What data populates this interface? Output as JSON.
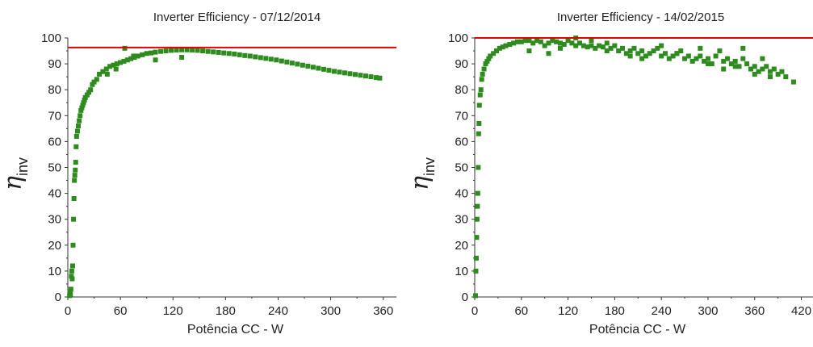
{
  "chart_data": [
    {
      "type": "scatter",
      "title": "Inverter Efficiency - 07/12/2014",
      "xlabel": "Potência CC - W",
      "ylabel_symbol": "η",
      "ylabel_subscript": "inv",
      "xlim": [
        0,
        375
      ],
      "ylim": [
        0,
        100
      ],
      "xticks": [
        0,
        60,
        120,
        180,
        240,
        300,
        360
      ],
      "yticks": [
        0,
        10,
        20,
        30,
        40,
        50,
        60,
        70,
        80,
        90,
        100
      ],
      "reference_line": 96.3,
      "series": [
        {
          "marker_color": "#2e8b1e",
          "line_color": "#e00000",
          "x": [
            2,
            2.5,
            3,
            3.5,
            4,
            4.5,
            5,
            5.5,
            6,
            6.5,
            7,
            7.5,
            8,
            8.5,
            9,
            9.5,
            10,
            11,
            12,
            13,
            14,
            15,
            16,
            17,
            18,
            19,
            20,
            22,
            24,
            26,
            28,
            30,
            33,
            36,
            40,
            44,
            48,
            52,
            56,
            60,
            64,
            68,
            72,
            76,
            80,
            85,
            90,
            95,
            100,
            106,
            112,
            118,
            124,
            130,
            136,
            142,
            148,
            154,
            160,
            166,
            172,
            178,
            184,
            190,
            196,
            202,
            208,
            214,
            220,
            226,
            232,
            238,
            244,
            250,
            256,
            262,
            268,
            274,
            280,
            286,
            292,
            298,
            304,
            310,
            316,
            322,
            328,
            334,
            340,
            346,
            352,
            356,
            65,
            100,
            75,
            130,
            45,
            55
          ],
          "y": [
            0.5,
            2,
            1,
            3,
            8,
            10,
            7,
            12,
            20,
            30,
            38,
            45,
            47,
            49,
            52,
            58,
            62,
            64,
            66,
            68,
            70,
            72,
            73,
            74,
            75,
            76,
            77,
            78,
            79,
            80,
            82,
            83,
            84,
            86,
            87,
            88,
            89,
            89.5,
            90,
            90.5,
            91,
            91.5,
            92,
            92.5,
            93,
            93.5,
            94,
            94.2,
            94.5,
            94.8,
            95,
            95.2,
            95.3,
            95.4,
            95.4,
            95.3,
            95.2,
            95,
            94.8,
            94.6,
            94.4,
            94.2,
            94,
            93.8,
            93.5,
            93.2,
            93,
            92.7,
            92.4,
            92.1,
            91.8,
            91.5,
            91.1,
            90.7,
            90.3,
            89.9,
            89.5,
            89.1,
            88.7,
            88.3,
            87.9,
            87.5,
            87.1,
            86.8,
            86.5,
            86.2,
            85.9,
            85.6,
            85.3,
            85,
            84.7,
            84.5,
            96,
            91.5,
            93,
            92.5,
            86,
            88
          ]
        }
      ]
    },
    {
      "type": "scatter",
      "title": "Inverter Efficiency - 14/02/2015",
      "xlabel": "Potência CC - W",
      "ylabel_symbol": "η",
      "ylabel_subscript": "inv",
      "xlim": [
        0,
        435
      ],
      "ylim": [
        0,
        100
      ],
      "xticks": [
        0,
        60,
        120,
        180,
        240,
        300,
        360,
        420
      ],
      "yticks": [
        0,
        10,
        20,
        30,
        40,
        50,
        60,
        70,
        80,
        90,
        100
      ],
      "reference_line": 100,
      "series": [
        {
          "marker_color": "#2e8b1e",
          "line_color": "#e00000",
          "x": [
            1,
            1.5,
            2,
            2.5,
            3,
            3.5,
            4,
            4.5,
            5,
            5.5,
            6,
            7,
            8,
            9,
            10,
            12,
            14,
            16,
            18,
            20,
            24,
            28,
            32,
            36,
            40,
            45,
            50,
            55,
            60,
            65,
            70,
            75,
            80,
            85,
            90,
            95,
            100,
            105,
            110,
            115,
            120,
            125,
            130,
            135,
            140,
            145,
            150,
            155,
            160,
            165,
            170,
            175,
            180,
            185,
            190,
            195,
            200,
            205,
            210,
            215,
            220,
            225,
            230,
            235,
            240,
            245,
            250,
            255,
            260,
            265,
            270,
            275,
            280,
            285,
            290,
            295,
            300,
            305,
            310,
            315,
            320,
            325,
            330,
            335,
            340,
            345,
            350,
            355,
            360,
            365,
            370,
            375,
            380,
            385,
            390,
            395,
            400,
            410,
            70,
            95,
            110,
            150,
            200,
            240,
            290,
            320,
            345,
            370,
            380,
            130,
            170,
            215,
            260,
            300,
            335,
            360
          ],
          "y": [
            0.5,
            10,
            15,
            23,
            30,
            35,
            40,
            50,
            63,
            67,
            74,
            78,
            80,
            84,
            86,
            88,
            90,
            91,
            92,
            93,
            94,
            95,
            96,
            96.5,
            97,
            97.5,
            98,
            98.5,
            98.5,
            99,
            99,
            98,
            99,
            98.5,
            97,
            98,
            99,
            98.5,
            98,
            97.5,
            99,
            98,
            97,
            98,
            97,
            96.5,
            97,
            96,
            97,
            96.5,
            95,
            96,
            97,
            95,
            96,
            94,
            95,
            96,
            94,
            95,
            93,
            94,
            95,
            96,
            93,
            94,
            92,
            93,
            94,
            95,
            92,
            93,
            91,
            92,
            93,
            91,
            92,
            90,
            93,
            95,
            91,
            92,
            90,
            91,
            89,
            92,
            90,
            88,
            89,
            87,
            88,
            89,
            87,
            88,
            86,
            87,
            85,
            83,
            95,
            94,
            96,
            99,
            93,
            97,
            96,
            88,
            96,
            92,
            85,
            100,
            98,
            92,
            94,
            90,
            89,
            86
          ]
        }
      ]
    }
  ]
}
